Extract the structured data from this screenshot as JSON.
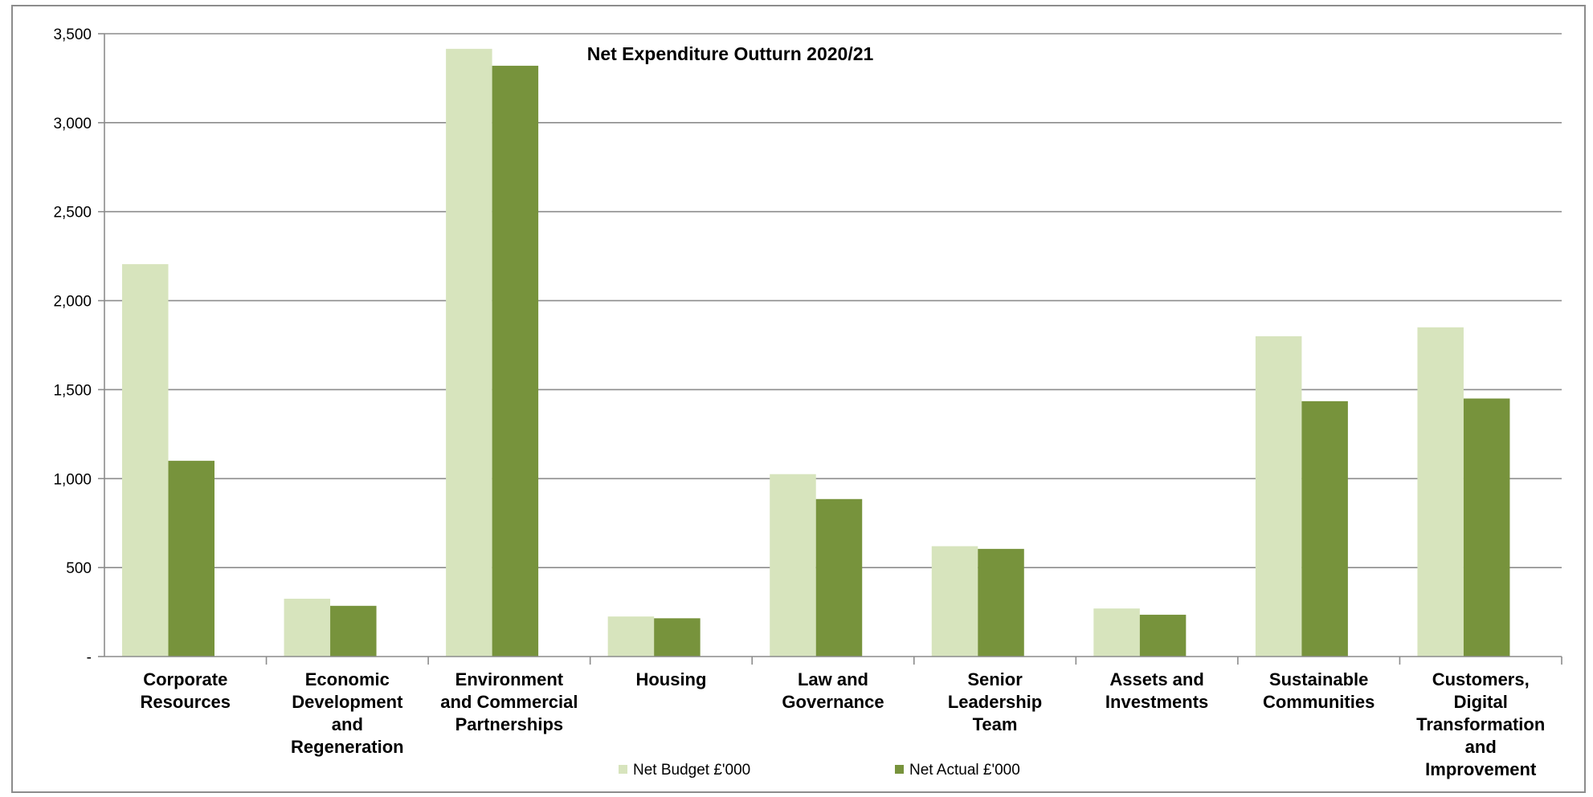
{
  "chart_data": {
    "type": "bar",
    "title": "Net Expenditure Outturn 2020/21",
    "xlabel": "",
    "ylabel": "",
    "ylim": [
      0,
      3500
    ],
    "y_ticks": [
      {
        "value": 0,
        "label": "-"
      },
      {
        "value": 500,
        "label": "500"
      },
      {
        "value": 1000,
        "label": "1,000"
      },
      {
        "value": 1500,
        "label": "1,500"
      },
      {
        "value": 2000,
        "label": "2,000"
      },
      {
        "value": 2500,
        "label": "2,500"
      },
      {
        "value": 3000,
        "label": "3,000"
      },
      {
        "value": 3500,
        "label": "3,500"
      }
    ],
    "grid": true,
    "legend_position": "bottom",
    "categories": [
      [
        "Corporate",
        "Resources"
      ],
      [
        "Economic",
        "Development",
        "and",
        "Regeneration"
      ],
      [
        "Environment",
        "and Commercial",
        "Partnerships"
      ],
      [
        "Housing"
      ],
      [
        "Law and",
        "Governance"
      ],
      [
        "Senior",
        "Leadership",
        "Team"
      ],
      [
        "Assets and",
        "Investments"
      ],
      [
        "Sustainable",
        "Communities"
      ],
      [
        "Customers,",
        "Digital",
        "Transformation",
        "and",
        "Improvement"
      ]
    ],
    "series": [
      {
        "name": "Net Budget £'000",
        "color": "#d7e4bd",
        "values": [
          2205,
          325,
          3415,
          225,
          1025,
          620,
          270,
          1800,
          1850
        ]
      },
      {
        "name": "Net Actual £'000",
        "color": "#77933c",
        "values": [
          1100,
          285,
          3320,
          215,
          885,
          605,
          235,
          1435,
          1450
        ]
      }
    ]
  }
}
